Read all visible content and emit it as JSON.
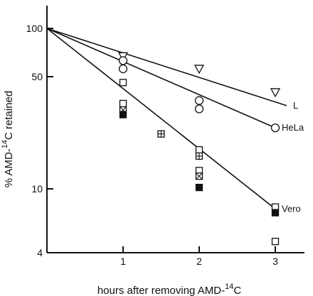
{
  "chart_data": {
    "type": "scatter",
    "xlabel": "hours after removing AMD-",
    "xlabel_sup": "14",
    "xlabel_end": "C",
    "ylabel": "% AMD-",
    "ylabel_sup": "14",
    "ylabel_end": "C retained",
    "yscale": "log",
    "xlim": [
      0,
      3.3
    ],
    "ylim": [
      4,
      120
    ],
    "x_ticks": [
      1,
      2,
      3
    ],
    "x_tick_labels": [
      "1",
      "2",
      "3"
    ],
    "y_ticks": [
      4,
      10,
      50,
      100
    ],
    "y_tick_labels": [
      "4",
      "10",
      "50",
      "100"
    ],
    "grid": false,
    "series": [
      {
        "name": "L",
        "marker": "triangle-down-open",
        "points": [
          [
            1,
            67
          ],
          [
            2,
            56
          ],
          [
            3,
            40
          ]
        ],
        "fit": [
          [
            0,
            100
          ],
          [
            3.15,
            33
          ]
        ]
      },
      {
        "name": "HeLa",
        "marker": "circle-open",
        "points": [
          [
            1,
            63
          ],
          [
            1,
            56
          ],
          [
            2,
            35.5
          ],
          [
            2,
            31.5
          ],
          [
            3,
            24
          ]
        ],
        "fit": [
          [
            0,
            100
          ],
          [
            3,
            24
          ]
        ]
      },
      {
        "name": "Vero",
        "marker": "square-mixed",
        "points": [
          {
            "x": 1,
            "y": 46,
            "m": "open"
          },
          {
            "x": 1,
            "y": 34,
            "m": "open"
          },
          {
            "x": 1,
            "y": 31,
            "m": "crossed"
          },
          {
            "x": 1,
            "y": 29,
            "m": "filled"
          },
          {
            "x": 1.5,
            "y": 22,
            "m": "hash"
          },
          {
            "x": 2,
            "y": 17.5,
            "m": "open"
          },
          {
            "x": 2,
            "y": 16,
            "m": "hash"
          },
          {
            "x": 2,
            "y": 13,
            "m": "open"
          },
          {
            "x": 2,
            "y": 12,
            "m": "crossed"
          },
          {
            "x": 2,
            "y": 10.2,
            "m": "filled"
          },
          {
            "x": 3,
            "y": 7.7,
            "m": "open"
          },
          {
            "x": 3,
            "y": 7.1,
            "m": "filled"
          },
          {
            "x": 3,
            "y": 4.7,
            "m": "open"
          }
        ],
        "fit": [
          [
            0,
            100
          ],
          [
            3,
            7.5
          ]
        ]
      }
    ]
  }
}
